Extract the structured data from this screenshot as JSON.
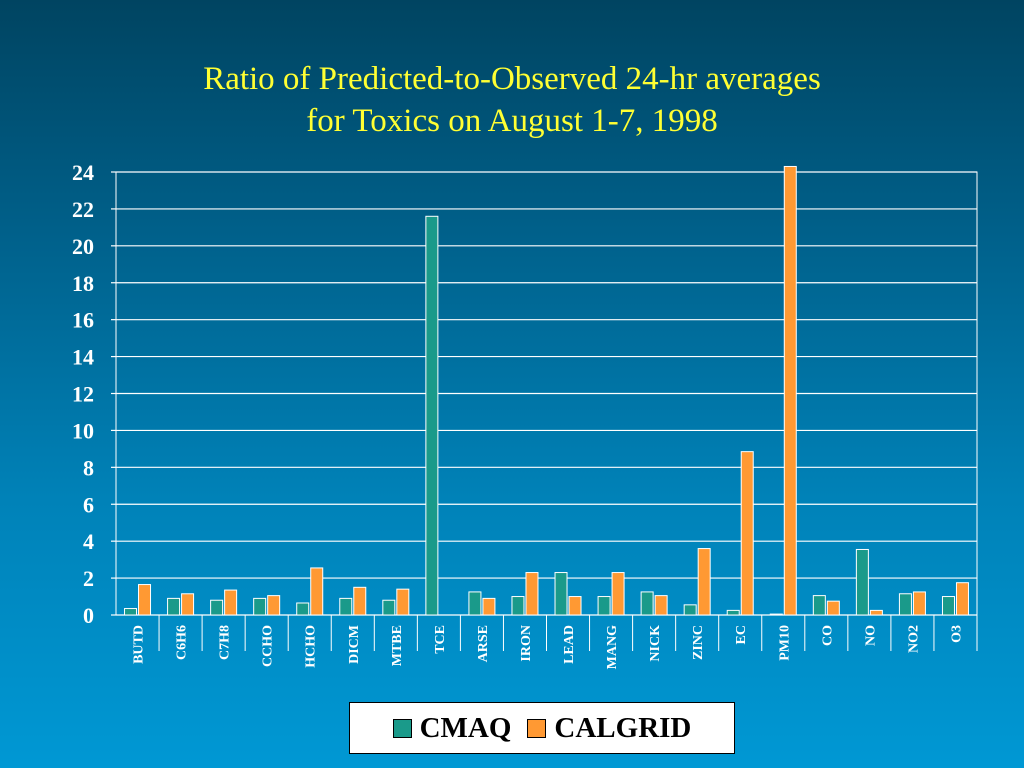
{
  "chart_data": {
    "type": "bar",
    "title": "Ratio of Predicted-to-Observed 24-hr averages",
    "subtitle": "for Toxics on August 1-7, 1998",
    "categories": [
      "BUTD",
      "C6H6",
      "C7H8",
      "CCHO",
      "HCHO",
      "DICM",
      "MTBE",
      "TCE",
      "ARSE",
      "IRON",
      "LEAD",
      "MANG",
      "NICK",
      "ZINC",
      "EC",
      "PM10",
      "CO",
      "NO",
      "NO2",
      "O3"
    ],
    "series": [
      {
        "name": "CMAQ",
        "color": "#1a9a8a",
        "values": [
          0.35,
          0.9,
          0.8,
          0.9,
          0.65,
          0.9,
          0.8,
          21.6,
          1.25,
          1.0,
          2.3,
          1.0,
          1.25,
          0.55,
          0.25,
          0.05,
          1.05,
          3.55,
          1.15,
          1.0
        ]
      },
      {
        "name": "CALGRID",
        "color": "#ff9933",
        "values": [
          1.65,
          1.15,
          1.35,
          1.05,
          2.55,
          1.5,
          1.4,
          null,
          0.9,
          2.3,
          1.0,
          2.3,
          1.05,
          3.6,
          8.85,
          24.3,
          0.75,
          0.25,
          1.25,
          1.75
        ]
      }
    ],
    "ylim": [
      0,
      24
    ],
    "yticks": [
      0,
      2,
      4,
      6,
      8,
      10,
      12,
      14,
      16,
      18,
      20,
      22,
      24
    ],
    "grid": true,
    "legend_position": "bottom-center"
  }
}
